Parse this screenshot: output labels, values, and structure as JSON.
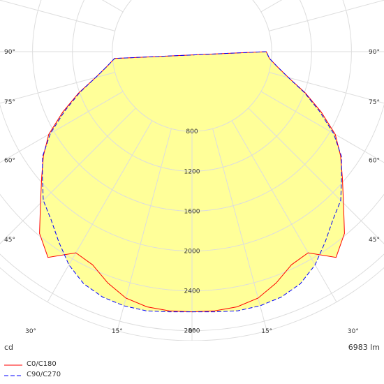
{
  "unit_label": "cd",
  "flux_label": "6983 lm",
  "legend": [
    {
      "label": "C0/C180",
      "color": "#ff0000",
      "dash": false
    },
    {
      "label": "C90/C270",
      "color": "#0000ff",
      "dash": true
    }
  ],
  "fill_color": "#ffff99",
  "chart_data": {
    "type": "polar",
    "unit": "cd",
    "rmax": 2900,
    "rings": [
      800,
      1200,
      1600,
      2000,
      2400,
      2800
    ],
    "ring_labels": [
      "800",
      "1200",
      "1600",
      "2000",
      "2400",
      "2800"
    ],
    "left_angle_labels": [
      {
        "text": "90°",
        "deg": 90
      },
      {
        "text": "75°",
        "deg": 75
      },
      {
        "text": "60°",
        "deg": 60
      },
      {
        "text": "45°",
        "deg": 45
      },
      {
        "text": "30°",
        "deg": 30
      },
      {
        "text": "15°",
        "deg": 15
      },
      {
        "text": "0°",
        "deg": 0
      }
    ],
    "right_angle_labels": [
      {
        "text": "90°",
        "deg": 90
      },
      {
        "text": "75°",
        "deg": 75
      },
      {
        "text": "60°",
        "deg": 60
      },
      {
        "text": "45°",
        "deg": 45
      },
      {
        "text": "30°",
        "deg": 30
      },
      {
        "text": "15°",
        "deg": 15
      }
    ],
    "series": [
      {
        "name": "C0/C180",
        "angles": [
          0,
          5,
          10,
          15,
          20,
          25,
          30,
          35,
          40,
          45,
          50,
          55,
          60,
          65,
          70,
          75,
          80,
          85,
          90
        ],
        "values": [
          2610,
          2610,
          2600,
          2560,
          2470,
          2360,
          2330,
          2520,
          2380,
          2150,
          1970,
          1820,
          1660,
          1430,
          1210,
          1000,
          870,
          780,
          745
        ]
      },
      {
        "name": "C90/C270",
        "angles": [
          0,
          5,
          10,
          15,
          20,
          25,
          30,
          35,
          40,
          45,
          50,
          55,
          60,
          65,
          70,
          75,
          80,
          85,
          90
        ],
        "values": [
          2610,
          2620,
          2640,
          2640,
          2620,
          2570,
          2470,
          2330,
          2200,
          2110,
          1960,
          1830,
          1640,
          1410,
          1200,
          1000,
          870,
          780,
          745
        ]
      }
    ]
  }
}
